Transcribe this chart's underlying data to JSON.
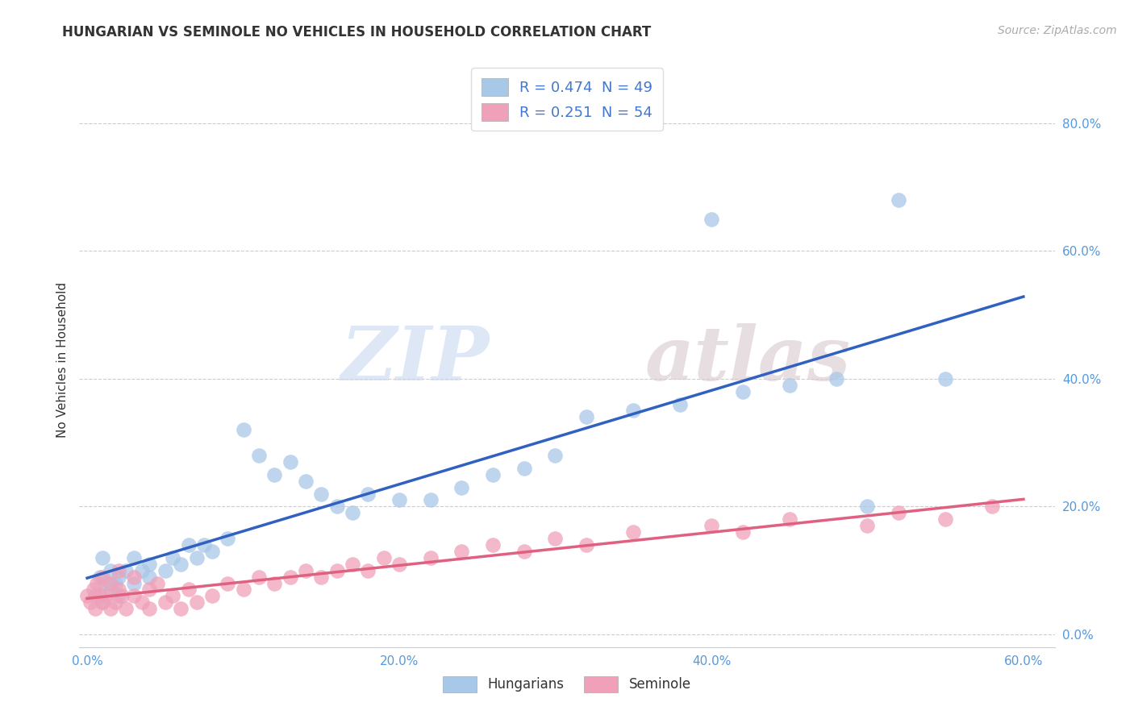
{
  "title": "HUNGARIAN VS SEMINOLE NO VEHICLES IN HOUSEHOLD CORRELATION CHART",
  "source_text": "Source: ZipAtlas.com",
  "ylabel": "No Vehicles in Household",
  "xlabel": "",
  "xlim": [
    -0.005,
    0.62
  ],
  "ylim": [
    -0.02,
    0.88
  ],
  "xtick_labels": [
    "0.0%",
    "20.0%",
    "40.0%",
    "60.0%"
  ],
  "xtick_vals": [
    0.0,
    0.2,
    0.4,
    0.6
  ],
  "ytick_labels": [
    "0.0%",
    "20.0%",
    "40.0%",
    "60.0%",
    "80.0%"
  ],
  "ytick_vals": [
    0.0,
    0.2,
    0.4,
    0.6,
    0.8
  ],
  "hungarian_color": "#a8c8e8",
  "seminole_color": "#f0a0b8",
  "hungarian_line_color": "#3060c0",
  "seminole_line_color": "#e06080",
  "R_hungarian": 0.474,
  "N_hungarian": 49,
  "R_seminole": 0.251,
  "N_seminole": 54,
  "legend_label_hungarian": "Hungarians",
  "legend_label_seminole": "Seminole",
  "watermark_zip": "ZIP",
  "watermark_atlas": "atlas",
  "background_color": "#ffffff",
  "grid_color": "#cccccc",
  "hungarian_scatter_x": [
    0.005,
    0.008,
    0.01,
    0.01,
    0.012,
    0.015,
    0.015,
    0.018,
    0.02,
    0.02,
    0.025,
    0.03,
    0.03,
    0.035,
    0.04,
    0.04,
    0.05,
    0.055,
    0.06,
    0.065,
    0.07,
    0.075,
    0.08,
    0.09,
    0.1,
    0.11,
    0.12,
    0.13,
    0.14,
    0.15,
    0.16,
    0.17,
    0.18,
    0.2,
    0.22,
    0.24,
    0.26,
    0.28,
    0.3,
    0.32,
    0.35,
    0.38,
    0.4,
    0.42,
    0.45,
    0.48,
    0.5,
    0.52,
    0.55
  ],
  "hungarian_scatter_y": [
    0.06,
    0.09,
    0.05,
    0.12,
    0.08,
    0.1,
    0.07,
    0.08,
    0.06,
    0.09,
    0.1,
    0.08,
    0.12,
    0.1,
    0.09,
    0.11,
    0.1,
    0.12,
    0.11,
    0.14,
    0.12,
    0.14,
    0.13,
    0.15,
    0.32,
    0.28,
    0.25,
    0.27,
    0.24,
    0.22,
    0.2,
    0.19,
    0.22,
    0.21,
    0.21,
    0.23,
    0.25,
    0.26,
    0.28,
    0.34,
    0.35,
    0.36,
    0.65,
    0.38,
    0.39,
    0.4,
    0.2,
    0.68,
    0.4
  ],
  "seminole_scatter_x": [
    0.0,
    0.002,
    0.004,
    0.005,
    0.006,
    0.008,
    0.01,
    0.01,
    0.012,
    0.015,
    0.015,
    0.018,
    0.02,
    0.02,
    0.022,
    0.025,
    0.03,
    0.03,
    0.035,
    0.04,
    0.04,
    0.045,
    0.05,
    0.055,
    0.06,
    0.065,
    0.07,
    0.08,
    0.09,
    0.1,
    0.11,
    0.12,
    0.13,
    0.14,
    0.15,
    0.16,
    0.17,
    0.18,
    0.19,
    0.2,
    0.22,
    0.24,
    0.26,
    0.28,
    0.3,
    0.32,
    0.35,
    0.4,
    0.42,
    0.45,
    0.5,
    0.52,
    0.55,
    0.58
  ],
  "seminole_scatter_y": [
    0.06,
    0.05,
    0.07,
    0.04,
    0.08,
    0.06,
    0.05,
    0.09,
    0.06,
    0.04,
    0.08,
    0.05,
    0.07,
    0.1,
    0.06,
    0.04,
    0.06,
    0.09,
    0.05,
    0.07,
    0.04,
    0.08,
    0.05,
    0.06,
    0.04,
    0.07,
    0.05,
    0.06,
    0.08,
    0.07,
    0.09,
    0.08,
    0.09,
    0.1,
    0.09,
    0.1,
    0.11,
    0.1,
    0.12,
    0.11,
    0.12,
    0.13,
    0.14,
    0.13,
    0.15,
    0.14,
    0.16,
    0.17,
    0.16,
    0.18,
    0.17,
    0.19,
    0.18,
    0.2
  ],
  "title_fontsize": 12,
  "source_fontsize": 10,
  "tick_fontsize": 11,
  "ylabel_fontsize": 11
}
